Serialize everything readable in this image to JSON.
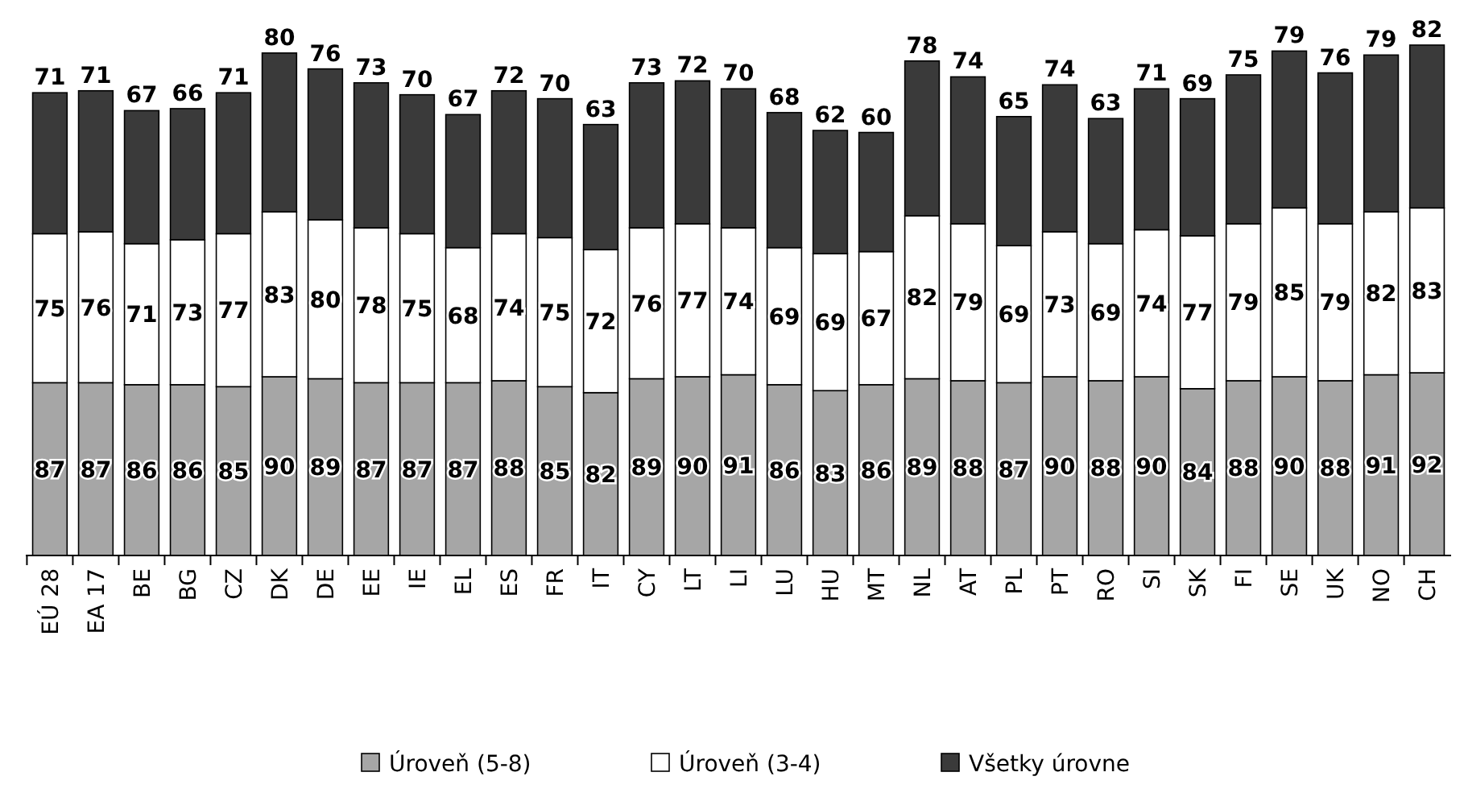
{
  "chart_data": {
    "type": "bar",
    "stacked": true,
    "data_labels": true,
    "legend": "bottom",
    "categories": [
      "EÚ 28",
      "EA 17",
      "BE",
      "BG",
      "CZ",
      "DK",
      "DE",
      "EE",
      "IE",
      "EL",
      "ES",
      "FR",
      "IT",
      "CY",
      "LT",
      "LI",
      "LU",
      "HU",
      "MT",
      "NL",
      "AT",
      "PL",
      "PT",
      "RO",
      "SI",
      "SK",
      "FI",
      "SE",
      "UK",
      "NO",
      "CH"
    ],
    "series": [
      {
        "name": "Úroveň (5-8)",
        "color": "#a6a6a6",
        "values": [
          87,
          87,
          86,
          86,
          85,
          90,
          89,
          87,
          87,
          87,
          88,
          85,
          82,
          89,
          90,
          91,
          86,
          83,
          86,
          89,
          88,
          87,
          90,
          88,
          90,
          84,
          88,
          90,
          88,
          91,
          92
        ]
      },
      {
        "name": "Úroveň (3-4)",
        "color": "#ffffff",
        "values": [
          75,
          76,
          71,
          73,
          77,
          83,
          80,
          78,
          75,
          68,
          74,
          75,
          72,
          76,
          77,
          74,
          69,
          69,
          67,
          82,
          79,
          69,
          73,
          69,
          74,
          77,
          79,
          85,
          79,
          82,
          83
        ]
      },
      {
        "name": "Všetky úrovne",
        "color": "#3a3a3a",
        "values": [
          71,
          71,
          67,
          66,
          71,
          80,
          76,
          73,
          70,
          67,
          72,
          70,
          63,
          73,
          72,
          70,
          68,
          62,
          60,
          78,
          74,
          65,
          74,
          63,
          71,
          69,
          75,
          79,
          76,
          79,
          82
        ]
      }
    ]
  }
}
